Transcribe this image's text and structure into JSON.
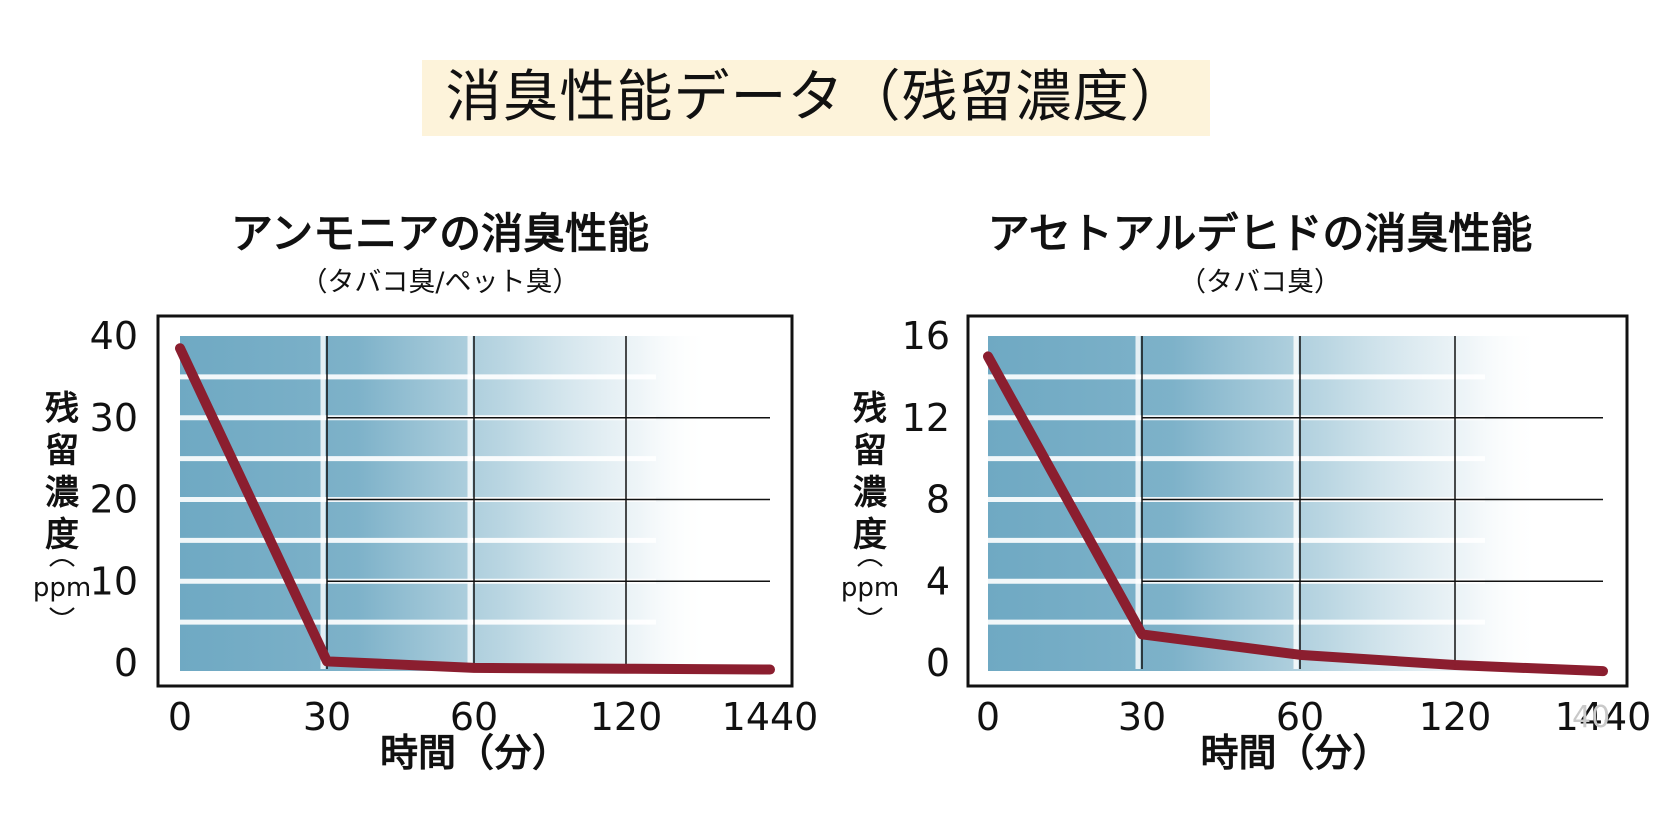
{
  "page": {
    "title": "消臭性能データ（残留濃度）",
    "page_number": "40"
  },
  "colors": {
    "title_background": "#fdf3da",
    "line": "#8b1e2f",
    "band_start": "#6fa9c3",
    "band_end": "#ffffff"
  },
  "chart_data": [
    {
      "type": "line",
      "title": "アンモニアの消臭性能",
      "subtitle": "（タバコ臭/ペット臭）",
      "xlabel": "時間（分）",
      "ylabel": "残留濃度",
      "ylabel_unit": "ppm",
      "categories": [
        "0",
        "30",
        "60",
        "120",
        "1440"
      ],
      "yticks": [
        40,
        30,
        20,
        10,
        0
      ],
      "ylim": [
        0,
        40
      ],
      "series": [
        {
          "values": [
            38.5,
            0.2,
            -0.6,
            -0.7,
            -0.8
          ]
        }
      ],
      "grid": true,
      "legend": "none"
    },
    {
      "type": "line",
      "title": "アセトアルデヒドの消臭性能",
      "subtitle": "（タバコ臭）",
      "xlabel": "時間（分）",
      "ylabel": "残留濃度",
      "ylabel_unit": "ppm",
      "categories": [
        "0",
        "30",
        "60",
        "120",
        "1440"
      ],
      "yticks": [
        16,
        12,
        8,
        4,
        0
      ],
      "ylim": [
        0,
        16
      ],
      "series": [
        {
          "values": [
            15.0,
            1.4,
            0.4,
            -0.1,
            -0.4
          ]
        }
      ],
      "grid": true,
      "legend": "none"
    }
  ]
}
